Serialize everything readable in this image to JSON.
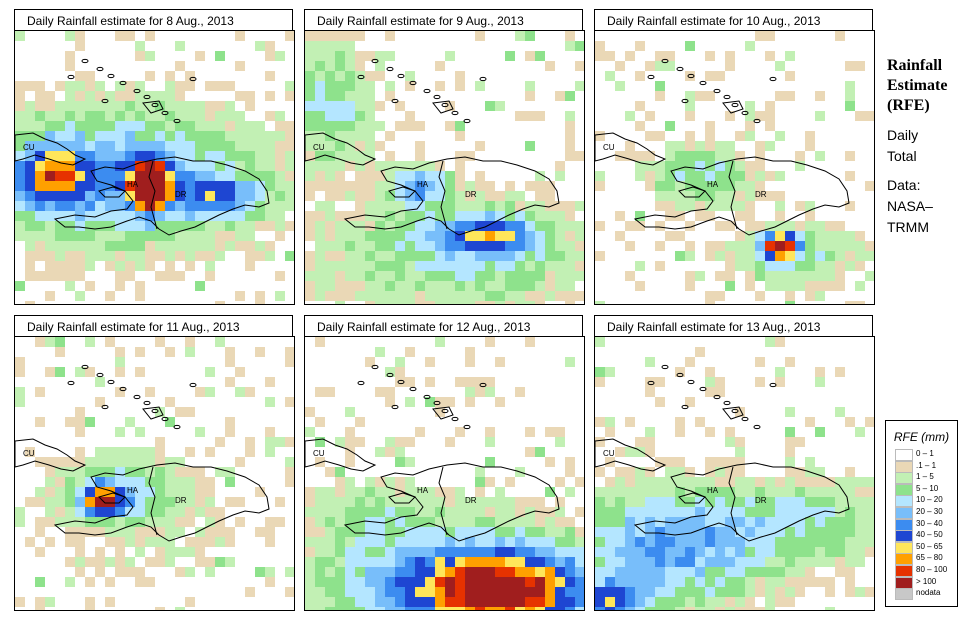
{
  "panels": [
    {
      "title": "Daily Rainfall estimate for  8 Aug., 2013",
      "date": "8 Aug., 2013"
    },
    {
      "title": "Daily Rainfall estimate for  9 Aug., 2013",
      "date": "9 Aug., 2013"
    },
    {
      "title": "Daily Rainfall estimate for  10 Aug., 2013",
      "date": "10 Aug., 2013"
    },
    {
      "title": "Daily Rainfall estimate for  11 Aug., 2013",
      "date": "11 Aug., 2013"
    },
    {
      "title": "Daily Rainfall estimate for  12 Aug., 2013",
      "date": "12 Aug., 2013"
    },
    {
      "title": "Daily Rainfall estimate for  13 Aug., 2013",
      "date": "13 Aug., 2013"
    }
  ],
  "map_labels": {
    "cuba": "CU",
    "haiti": "HA",
    "dominican_republic": "DR"
  },
  "side": {
    "title_line1": "Rainfall",
    "title_line2": "Estimate",
    "title_line3": "(RFE)",
    "period_line1": "Daily",
    "period_line2": "Total",
    "source_line1": "Data:",
    "source_line2": "NASA–",
    "source_line3": "TRMM"
  },
  "legend": {
    "title": "RFE (mm)",
    "classes": [
      {
        "label": "0 – 1",
        "color": "#ffffff"
      },
      {
        "label": ".1 – 1",
        "color": "#ead8b6"
      },
      {
        "label": "1 – 5",
        "color": "#c2f0b4"
      },
      {
        "label": "5 – 10",
        "color": "#8ee28c"
      },
      {
        "label": "10 – 20",
        "color": "#b4e6ff"
      },
      {
        "label": "20 – 30",
        "color": "#78befa"
      },
      {
        "label": "30 – 40",
        "color": "#3c8cf0"
      },
      {
        "label": "40 – 50",
        "color": "#1e46d2"
      },
      {
        "label": "50 – 65",
        "color": "#ffe65a"
      },
      {
        "label": "65 – 80",
        "color": "#ffa000"
      },
      {
        "label": "80 – 100",
        "color": "#e63200"
      },
      {
        "label": "> 100",
        "color": "#a01e1e"
      },
      {
        "label": "nodata",
        "color": "#c8c8c8"
      }
    ]
  }
}
